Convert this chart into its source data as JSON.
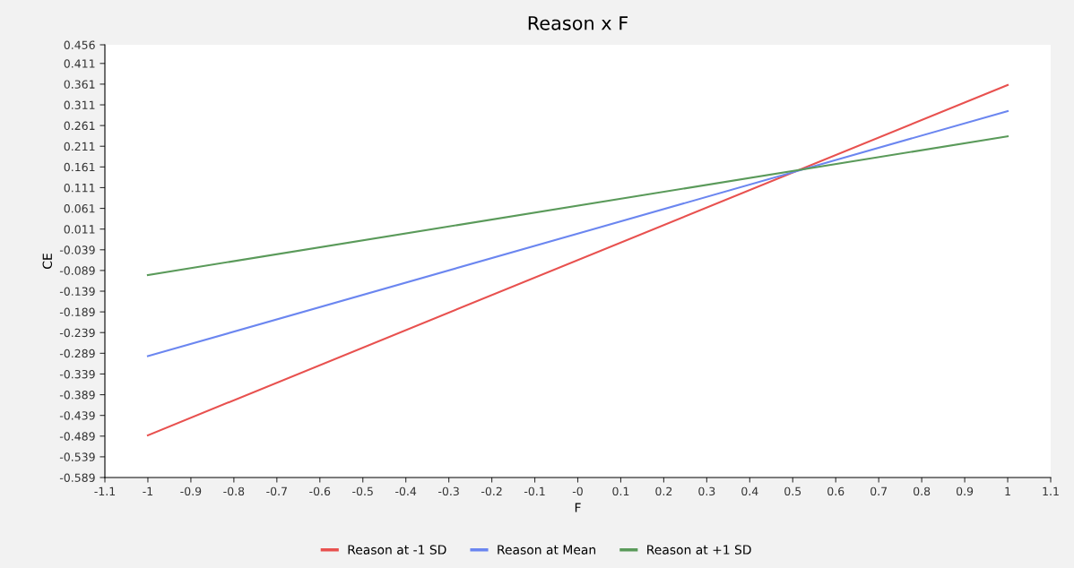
{
  "chart_data": {
    "type": "line",
    "title": "Reason x F",
    "xlabel": "F",
    "ylabel": "CE",
    "x": [
      -1,
      1
    ],
    "series": [
      {
        "name": "Reason at -1 SD",
        "color": "#e8514f",
        "values": [
          -0.487,
          0.359
        ]
      },
      {
        "name": "Reason at Mean",
        "color": "#6b86f0",
        "values": [
          -0.296,
          0.296
        ]
      },
      {
        "name": "Reason at +1 SD",
        "color": "#5a9a5a",
        "values": [
          -0.1,
          0.235
        ]
      }
    ],
    "xlim": [
      -1.1,
      1.1
    ],
    "xticks": [
      -1.1,
      -1,
      -0.9,
      -0.8,
      -0.7,
      -0.6,
      -0.5,
      -0.4,
      -0.3,
      -0.2,
      -0.1,
      {
        "value": 0,
        "label": "-0"
      },
      0.1,
      0.2,
      0.3,
      0.4,
      0.5,
      0.6,
      0.7,
      0.8,
      0.9,
      1,
      1.1
    ],
    "ylim": [
      -0.589,
      0.456
    ],
    "yticks": [
      -0.589,
      -0.539,
      -0.489,
      -0.439,
      -0.389,
      -0.339,
      -0.289,
      -0.239,
      -0.189,
      -0.139,
      -0.089,
      -0.039,
      0.011,
      0.061,
      0.111,
      0.161,
      0.211,
      0.261,
      0.311,
      0.361,
      0.411,
      0.456
    ],
    "grid": false,
    "legend": "bottom",
    "marker": "none",
    "line_style": "solid"
  }
}
